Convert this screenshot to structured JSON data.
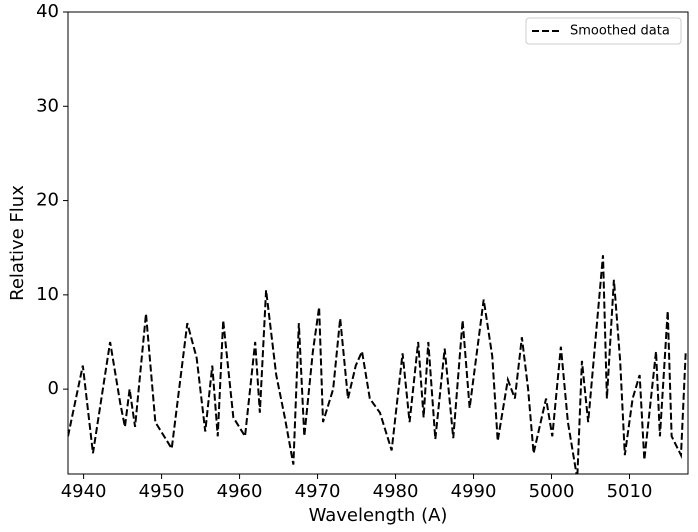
{
  "chart_data": {
    "type": "line",
    "xlabel": "Wavelength (A)",
    "ylabel": "Relative Flux",
    "xlim": [
      4938,
      5017.5
    ],
    "ylim": [
      -9,
      40
    ],
    "xticks": [
      4940,
      4950,
      4960,
      4970,
      4980,
      4990,
      5000,
      5010
    ],
    "yticks": [
      0,
      10,
      20,
      30,
      40
    ],
    "legend": "upper right",
    "series": [
      {
        "name": "Smoothed data",
        "color": "#000000",
        "linestyle": "dashed",
        "x": [
          4938.0,
          4939.9,
          4941.2,
          4943.4,
          4944.7,
          4945.3,
          4945.9,
          4946.6,
          4948.0,
          4949.2,
          4951.3,
          4953.3,
          4954.5,
          4955.6,
          4956.5,
          4957.2,
          4957.9,
          4959.2,
          4960.7,
          4962.0,
          4962.6,
          4963.4,
          4964.7,
          4965.8,
          4966.9,
          4967.6,
          4968.3,
          4969.4,
          4970.2,
          4970.7,
          4972.0,
          4972.9,
          4973.9,
          4974.9,
          4975.7,
          4976.7,
          4978.0,
          4979.5,
          4980.9,
          4981.8,
          4982.9,
          4983.6,
          4984.2,
          4985.1,
          4986.3,
          4987.4,
          4988.6,
          4989.5,
          4990.6,
          4991.3,
          4992.4,
          4993.1,
          4994.4,
          4995.3,
          4996.2,
          4997.0,
          4997.7,
          4999.3,
          5000.1,
          5001.2,
          5002.1,
          5003.3,
          5003.9,
          5004.7,
          5006.6,
          5007.1,
          5008.0,
          5008.8,
          5009.4,
          5010.4,
          5011.3,
          5011.9,
          5013.4,
          5013.9,
          5014.9,
          5015.4,
          5016.6,
          5017.2
        ],
        "values": [
          -5,
          2.5,
          -6.8,
          5,
          -1.5,
          -4,
          0,
          -4,
          8,
          -3.5,
          -6.3,
          7,
          3.3,
          -4.5,
          2.5,
          -5,
          7.3,
          -3,
          -5,
          5,
          -2.5,
          10.5,
          1.5,
          -3,
          -8,
          7,
          -5,
          4,
          8.7,
          -3.5,
          0,
          7.5,
          -1,
          2.5,
          4,
          -1,
          -2.5,
          -6.5,
          3.8,
          -3.5,
          5,
          -3,
          5,
          -5.3,
          4.3,
          -5.2,
          7.3,
          -2,
          5,
          9.5,
          3.5,
          -5.5,
          1,
          -1,
          5.5,
          0,
          -6.8,
          -1,
          -5,
          4.5,
          -3.5,
          -9.5,
          3,
          -3.5,
          14.2,
          -1,
          11.6,
          3,
          -7,
          -1,
          1.5,
          -7.5,
          4,
          -5,
          8.3,
          -5,
          -7,
          3.8
        ]
      }
    ]
  }
}
